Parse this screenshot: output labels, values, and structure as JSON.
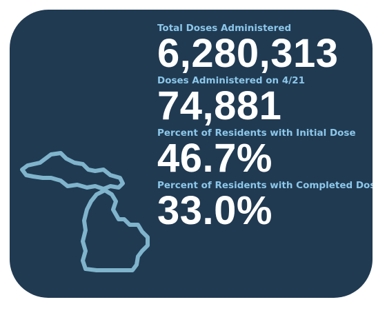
{
  "colors": {
    "card_background": "#203a52",
    "label_color": "#8cc7e9",
    "value_color": "#ffffff",
    "map_outline": "#7fb4cc"
  },
  "icons": {
    "map": "michigan-outline-icon"
  },
  "stats": [
    {
      "label": "Total Doses Administered",
      "value": "6,280,313"
    },
    {
      "label": "Doses Administered on 4/21",
      "value": "74,881"
    },
    {
      "label": "Percent of Residents with Initial Dose",
      "value": "46.7%"
    },
    {
      "label": "Percent of Residents with Completed Dose",
      "value": "33.0%"
    }
  ]
}
